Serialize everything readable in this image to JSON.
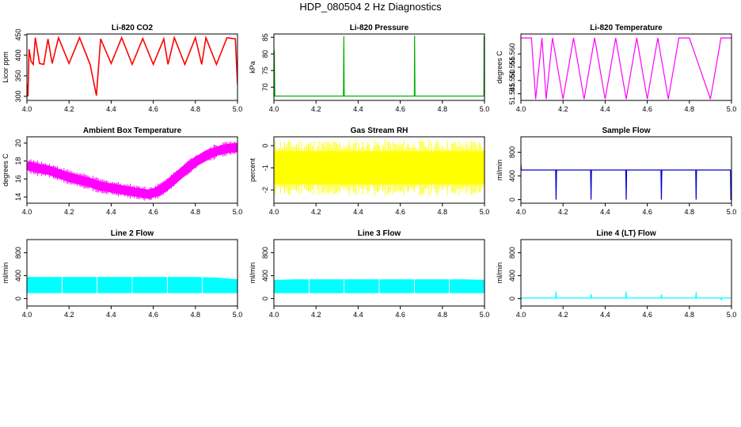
{
  "page": {
    "title": "HDP_080504  2 Hz Diagnostics"
  },
  "chart_data": [
    {
      "type": "line",
      "title": "Li-820 CO2",
      "ylabel": "Licor ppm",
      "color": "#ff0000",
      "xlim": [
        4.0,
        5.0
      ],
      "ylim": [
        290,
        452
      ],
      "xticks": [
        "4.0",
        "4.2",
        "4.4",
        "4.6",
        "4.8",
        "5.0"
      ],
      "yticks": [
        "300",
        "350",
        "400",
        "450"
      ],
      "series": [
        {
          "x": [
            4.0,
            4.005,
            4.01,
            4.02,
            4.03,
            4.04,
            4.06,
            4.08,
            4.1,
            4.12,
            4.15,
            4.2,
            4.25,
            4.3,
            4.33,
            4.35,
            4.4,
            4.45,
            4.5,
            4.55,
            4.6,
            4.65,
            4.67,
            4.7,
            4.75,
            4.8,
            4.83,
            4.85,
            4.9,
            4.95,
            4.99,
            5.0
          ],
          "y": [
            330,
            300,
            415,
            385,
            378,
            443,
            380,
            378,
            440,
            380,
            443,
            380,
            443,
            378,
            302,
            440,
            380,
            443,
            378,
            441,
            378,
            440,
            378,
            443,
            378,
            443,
            378,
            443,
            378,
            443,
            440,
            330
          ]
        }
      ]
    },
    {
      "type": "line",
      "title": "Li-820 Pressure",
      "ylabel": "kPa",
      "color": "#00b000",
      "xlim": [
        4.0,
        5.0
      ],
      "ylim": [
        66,
        86
      ],
      "xticks": [
        "4.0",
        "4.2",
        "4.4",
        "4.6",
        "4.8",
        "5.0"
      ],
      "yticks": [
        "70",
        "75",
        "80",
        "85"
      ],
      "series": [
        {
          "x": [
            4.0,
            4.002,
            4.004,
            4.1,
            4.2,
            4.33,
            4.332,
            4.334,
            4.4,
            4.5,
            4.667,
            4.668,
            4.67,
            4.8,
            4.9,
            4.997,
            4.998,
            5.0
          ],
          "y": [
            81,
            81,
            67.3,
            67.3,
            67.3,
            67.3,
            85.3,
            67.3,
            67.3,
            67.3,
            67.3,
            85.5,
            67.3,
            67.3,
            67.3,
            67.3,
            85.3,
            67.3
          ]
        }
      ]
    },
    {
      "type": "line",
      "title": "Li-820 Temperature",
      "ylabel": "degrees C",
      "color": "#ff00ff",
      "xlim": [
        4.0,
        5.0
      ],
      "ylim": [
        51.5425,
        51.5675
      ],
      "xticks": [
        "4.0",
        "4.2",
        "4.4",
        "4.6",
        "4.8",
        "5.0"
      ],
      "yticks": [
        "51.545",
        "51.550",
        "51.555",
        "51.560"
      ],
      "series": [
        {
          "x": [
            4.0,
            4.05,
            4.07,
            4.1,
            4.12,
            4.15,
            4.2,
            4.25,
            4.3,
            4.35,
            4.4,
            4.45,
            4.5,
            4.55,
            4.6,
            4.65,
            4.7,
            4.75,
            4.8,
            4.9,
            4.95,
            5.0
          ],
          "y": [
            51.566,
            51.566,
            51.543,
            51.566,
            51.543,
            51.566,
            51.543,
            51.566,
            51.543,
            51.566,
            51.543,
            51.566,
            51.543,
            51.566,
            51.543,
            51.566,
            51.543,
            51.566,
            51.566,
            51.543,
            51.566,
            51.566
          ]
        }
      ]
    },
    {
      "type": "line",
      "title": "Ambient Box Temperature",
      "ylabel": "degrees C",
      "color": "#ff00ff",
      "xlim": [
        4.0,
        5.0
      ],
      "ylim": [
        13.3,
        20.7
      ],
      "xticks": [
        "4.0",
        "4.2",
        "4.4",
        "4.6",
        "4.8",
        "5.0"
      ],
      "yticks": [
        "14",
        "16",
        "18",
        "20"
      ],
      "series": [
        {
          "x": [
            4.0,
            4.05,
            4.1,
            4.15,
            4.2,
            4.25,
            4.3,
            4.35,
            4.4,
            4.45,
            4.5,
            4.55,
            4.58,
            4.62,
            4.66,
            4.7,
            4.75,
            4.8,
            4.85,
            4.9,
            4.95,
            5.0
          ],
          "y": [
            17.5,
            17.2,
            17.0,
            16.6,
            16.2,
            15.9,
            15.6,
            15.2,
            15.0,
            14.8,
            14.6,
            14.4,
            14.3,
            14.6,
            15.2,
            16.0,
            17.0,
            17.9,
            18.6,
            19.1,
            19.4,
            19.5
          ]
        }
      ]
    },
    {
      "type": "line",
      "title": "Gas Stream RH",
      "ylabel": "percent",
      "color": "#ffff00",
      "xlim": [
        4.0,
        5.0
      ],
      "ylim": [
        -2.6,
        0.4
      ],
      "xticks": [
        "4.0",
        "4.2",
        "4.4",
        "4.6",
        "4.8",
        "5.0"
      ],
      "yticks": [
        "-2",
        "-1",
        "0"
      ],
      "series": [
        {
          "x": [
            4.0,
            4.1,
            4.2,
            4.3,
            4.4,
            4.5,
            4.6,
            4.7,
            4.8,
            4.9,
            5.0
          ],
          "y": [
            -1.0,
            -1.0,
            -1.0,
            -1.0,
            -1.0,
            -1.0,
            -1.0,
            -1.0,
            -1.0,
            -1.0,
            -1.0
          ]
        }
      ]
    },
    {
      "type": "line",
      "title": "Sample Flow",
      "ylabel": "ml/min",
      "color": "#0000cc",
      "xlim": [
        4.0,
        5.0
      ],
      "ylim": [
        -60,
        1060
      ],
      "xticks": [
        "4.0",
        "4.2",
        "4.4",
        "4.6",
        "4.8",
        "5.0"
      ],
      "yticks": [
        "0",
        "400",
        "800"
      ],
      "series": [
        {
          "x": [
            4.0,
            4.002,
            4.004,
            4.1,
            4.165,
            4.167,
            4.169,
            4.25,
            4.331,
            4.333,
            4.335,
            4.4,
            4.498,
            4.5,
            4.502,
            4.6,
            4.665,
            4.667,
            4.669,
            4.75,
            4.83,
            4.832,
            4.834,
            4.9,
            4.995,
            4.997,
            5.0
          ],
          "y": [
            600,
            500,
            500,
            500,
            500,
            0,
            500,
            500,
            500,
            0,
            500,
            500,
            500,
            0,
            500,
            500,
            500,
            0,
            500,
            500,
            500,
            0,
            500,
            500,
            500,
            0,
            0
          ]
        }
      ]
    },
    {
      "type": "area",
      "title": "Line 2 Flow",
      "ylabel": "ml/min",
      "color": "#00ffff",
      "xlim": [
        4.0,
        5.0
      ],
      "ylim": [
        -130,
        1030
      ],
      "xticks": [
        "4.0",
        "4.2",
        "4.4",
        "4.6",
        "4.8",
        "5.0"
      ],
      "yticks": [
        "0",
        "400",
        "800"
      ],
      "series": [
        {
          "x": [
            4.0,
            4.1,
            4.2,
            4.3,
            4.4,
            4.5,
            4.6,
            4.7,
            4.8,
            4.9,
            5.0
          ],
          "low": [
            100,
            100,
            100,
            100,
            100,
            100,
            100,
            100,
            100,
            100,
            100
          ],
          "high": [
            370,
            370,
            370,
            370,
            370,
            370,
            370,
            370,
            370,
            360,
            330
          ]
        }
      ]
    },
    {
      "type": "area",
      "title": "Line 3 Flow",
      "ylabel": "ml/min",
      "color": "#00ffff",
      "xlim": [
        4.0,
        5.0
      ],
      "ylim": [
        -130,
        1030
      ],
      "xticks": [
        "4.0",
        "4.2",
        "4.4",
        "4.6",
        "4.8",
        "5.0"
      ],
      "yticks": [
        "0",
        "400",
        "800"
      ],
      "series": [
        {
          "x": [
            4.0,
            4.1,
            4.2,
            4.3,
            4.4,
            4.5,
            4.6,
            4.7,
            4.8,
            4.9,
            5.0
          ],
          "low": [
            100,
            100,
            100,
            100,
            100,
            100,
            100,
            100,
            100,
            100,
            100
          ],
          "high": [
            320,
            330,
            330,
            330,
            330,
            330,
            330,
            330,
            330,
            330,
            320
          ]
        }
      ]
    },
    {
      "type": "line",
      "title": "Line 4 (LT) Flow",
      "ylabel": "ml/min",
      "color": "#00ffff",
      "xlim": [
        4.0,
        5.0
      ],
      "ylim": [
        -130,
        1030
      ],
      "xticks": [
        "4.0",
        "4.2",
        "4.4",
        "4.6",
        "4.8",
        "5.0"
      ],
      "yticks": [
        "0",
        "400",
        "800"
      ],
      "series": [
        {
          "x": [
            4.0,
            4.165,
            4.167,
            4.169,
            4.331,
            4.333,
            4.335,
            4.498,
            4.5,
            4.502,
            4.665,
            4.667,
            4.669,
            4.83,
            4.832,
            4.834,
            4.95,
            4.952,
            4.954,
            5.0
          ],
          "y": [
            10,
            10,
            120,
            10,
            10,
            80,
            10,
            10,
            120,
            10,
            10,
            70,
            10,
            10,
            110,
            10,
            10,
            -30,
            10,
            10
          ]
        }
      ]
    }
  ]
}
